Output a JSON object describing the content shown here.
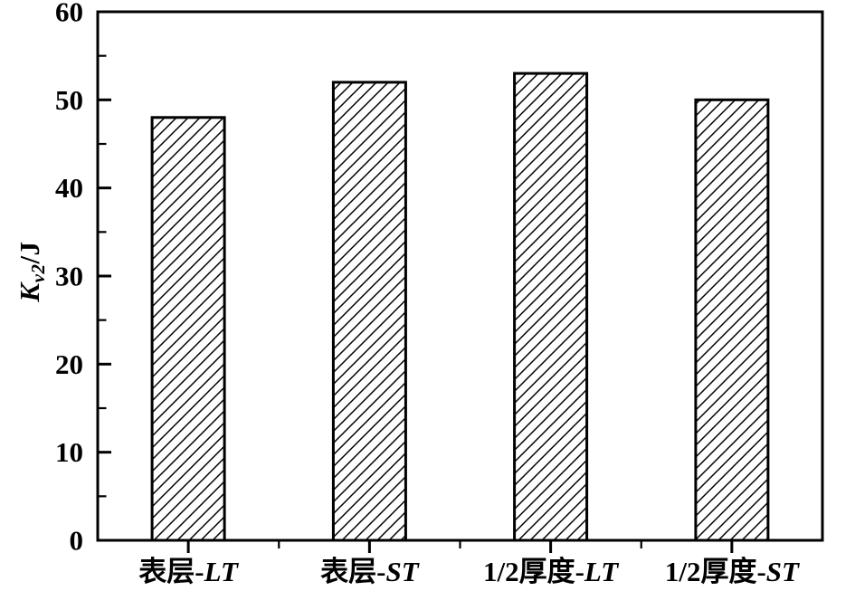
{
  "chart_data": {
    "type": "bar",
    "title": "",
    "categories": [
      "表层-LT",
      "表层-ST",
      "1/2厚度-LT",
      "1/2厚度-ST"
    ],
    "category_parts": [
      {
        "prefix": "表层-",
        "italic": "LT"
      },
      {
        "prefix": "表层-",
        "italic": "ST"
      },
      {
        "prefix": "1/2厚度-",
        "italic": "LT"
      },
      {
        "prefix": "1/2厚度-",
        "italic": "ST"
      }
    ],
    "values": [
      48,
      52,
      53,
      50
    ],
    "xlabel": "",
    "ylabel": "Kv2/J",
    "ylabel_main": "K",
    "ylabel_sub": "v2",
    "ylabel_unit": "/J",
    "ylim": [
      0,
      60
    ],
    "yticks": [
      0,
      10,
      20,
      30,
      40,
      50,
      60
    ],
    "ytick_minor_step": 5,
    "grid": false,
    "legend": false,
    "bar_fill_style": "diagonal-hatch-forward-slash",
    "bar_edge_color": "#000000",
    "axis_color": "#000000",
    "background_color": "#ffffff"
  }
}
